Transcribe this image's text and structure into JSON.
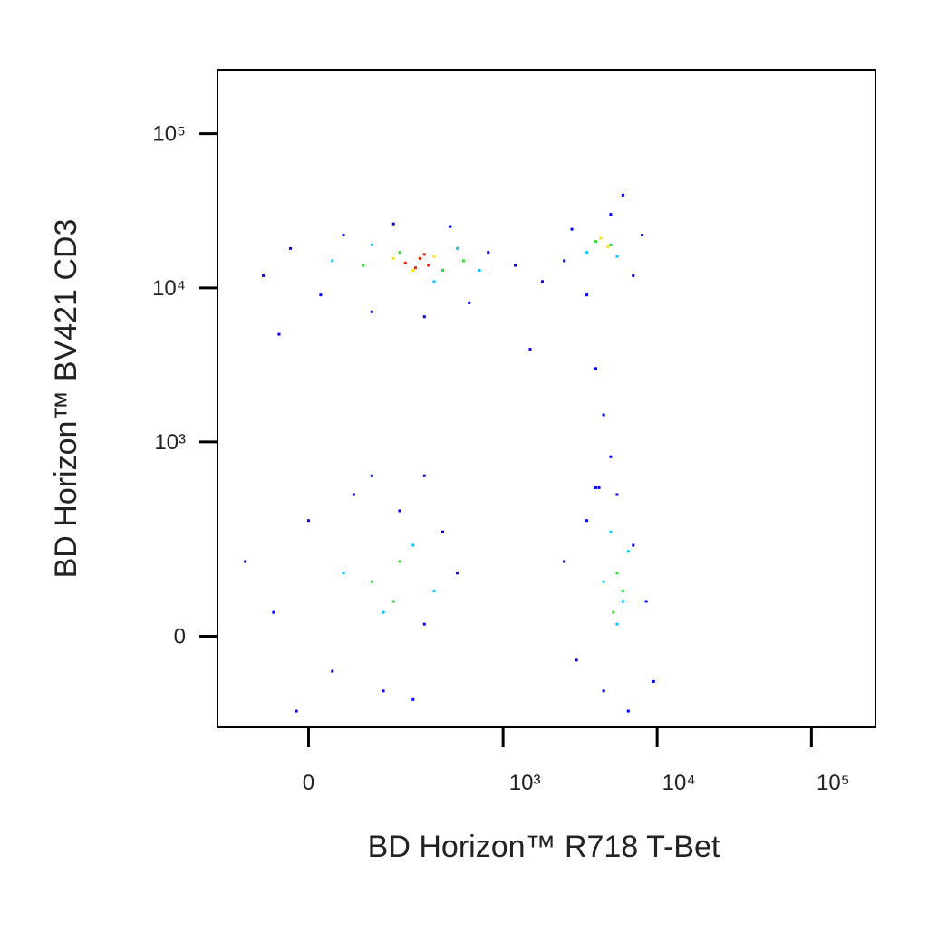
{
  "chart_data": {
    "type": "scatter",
    "xlabel": "BD Horizon™ R718 T-Bet",
    "ylabel": "BD Horizon™ BV421 CD3",
    "scale": "biexponential",
    "xlim": [
      -200,
      260000
    ],
    "ylim": [
      -200,
      260000
    ],
    "xticks": [
      0,
      {
        "value": 1000,
        "label": "10³"
      },
      {
        "value": 10000,
        "label": "10⁴"
      },
      {
        "value": 100000,
        "label": "10⁵"
      }
    ],
    "yticks": [
      0,
      {
        "value": 1000,
        "label": "10³"
      },
      {
        "value": 10000,
        "label": "10⁴"
      },
      {
        "value": 100000,
        "label": "10⁵"
      }
    ],
    "series": [
      {
        "color": "#0000ff",
        "x": [
          -80,
          -30,
          20,
          60,
          120,
          180,
          300,
          450,
          600,
          800,
          1200,
          1800,
          2500,
          2800,
          3500,
          5000,
          7000,
          8000,
          6000,
          4000,
          4500,
          5000,
          4200,
          300,
          -50,
          1500,
          -120,
          -60,
          0,
          40,
          80,
          150,
          200,
          300,
          400,
          500,
          -20,
          250,
          120,
          2500,
          3000,
          3500,
          4500,
          5500,
          7000,
          8500,
          9500,
          6500,
          4000
        ],
        "y": [
          12000,
          18000,
          9000,
          22000,
          7000,
          26000,
          6500,
          25000,
          8000,
          17000,
          14000,
          11000,
          15000,
          24000,
          9000,
          30000,
          12000,
          22000,
          40000,
          3000,
          1500,
          800,
          500,
          600,
          5000,
          4000,
          150,
          40,
          300,
          -60,
          450,
          -100,
          350,
          20,
          250,
          120,
          -150,
          -120,
          600,
          150,
          -40,
          300,
          -100,
          450,
          200,
          60,
          -80,
          -150,
          500
        ]
      },
      {
        "color": "#00c8ff",
        "x": [
          40,
          120,
          350,
          500,
          700,
          3500,
          5500,
          60,
          150,
          250,
          350,
          4500,
          5500,
          6500,
          6000,
          5000
        ],
        "y": [
          15000,
          19000,
          11000,
          18000,
          13000,
          17000,
          16000,
          120,
          40,
          200,
          80,
          100,
          20,
          180,
          60,
          250
        ]
      },
      {
        "color": "#30e030",
        "x": [
          100,
          200,
          400,
          550,
          4000,
          5000,
          120,
          200,
          180,
          5500,
          6000,
          5200
        ],
        "y": [
          14000,
          17000,
          13000,
          15000,
          20000,
          19000,
          100,
          150,
          60,
          120,
          80,
          40
        ]
      },
      {
        "color": "#ffe000",
        "x": [
          180,
          250,
          350,
          4300,
          4800
        ],
        "y": [
          15500,
          13000,
          16000,
          21000,
          18500
        ]
      },
      {
        "color": "#ff1a00",
        "x": [
          220,
          280,
          320,
          260,
          300
        ],
        "y": [
          14500,
          15500,
          14000,
          13500,
          16500
        ]
      }
    ]
  }
}
